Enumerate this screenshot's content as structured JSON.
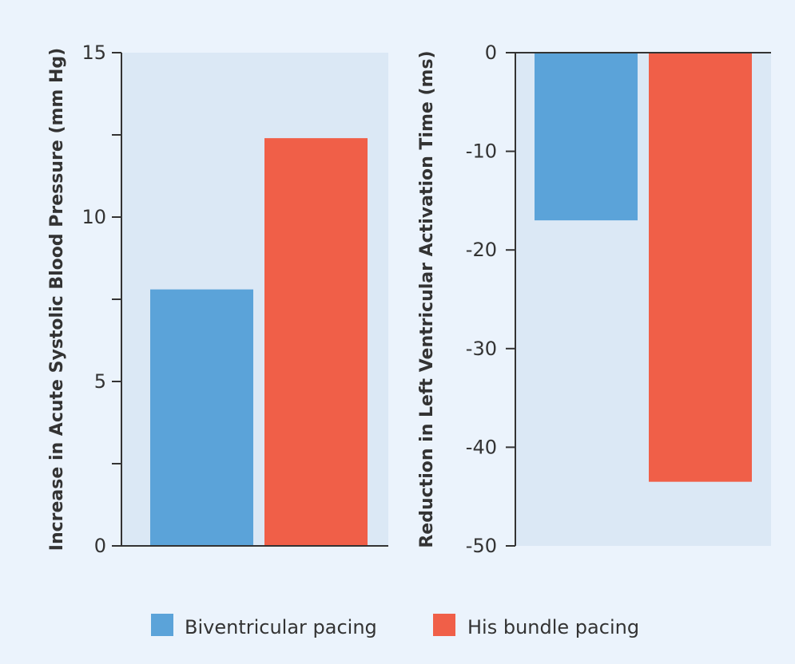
{
  "chart_data": [
    {
      "type": "bar",
      "ylabel": "Increase in Acute Systolic Blood Pressure (mm Hg)",
      "xlabel": "",
      "categories": [
        "Biventricular pacing",
        "His bundle pacing"
      ],
      "values": [
        7.8,
        12.4
      ],
      "ylim": [
        0,
        15
      ],
      "major_ticks": [
        0,
        5,
        10,
        15
      ],
      "minor_ticks": [
        2.5,
        7.5,
        12.5
      ],
      "grid": false
    },
    {
      "type": "bar",
      "ylabel": "Reduction in Left Ventricular Activation Time (ms)",
      "xlabel": "",
      "categories": [
        "Biventricular pacing",
        "His bundle pacing"
      ],
      "values": [
        -17,
        -43.5
      ],
      "ylim": [
        -50,
        0
      ],
      "major_ticks": [
        0,
        -10,
        -20,
        -30,
        -40,
        -50
      ],
      "grid": false
    }
  ],
  "legend": {
    "placement": "bottom-center",
    "items": [
      {
        "label": "Biventricular pacing",
        "color": "#5ba3d9"
      },
      {
        "label": "His bundle pacing",
        "color": "#f05f48"
      }
    ]
  },
  "colors": {
    "background": "#ebf3fc",
    "plot_area": "#dbe8f5",
    "axis": "#333333"
  }
}
